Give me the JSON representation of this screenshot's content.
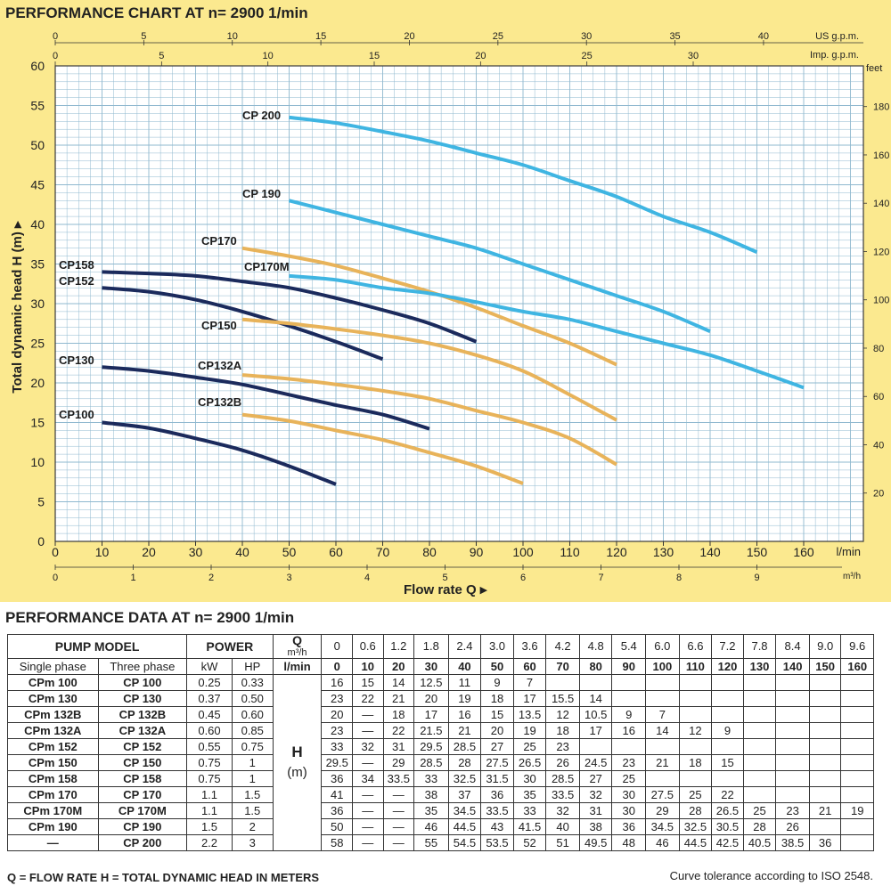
{
  "chart_title": "PERFORMANCE CHART AT n= 2900 1/min",
  "table_title": "PERFORMANCE DATA AT n= 2900 1/min",
  "colors": {
    "background": "#fbe98f",
    "grid": "#8fb8cf",
    "dark": "#1b2a5c",
    "orange": "#e8b35a",
    "blue": "#3fb5e2"
  },
  "chart_data": {
    "type": "line",
    "xlabel": "Flow rate Q",
    "ylabel": "Total dynamic head H (m)",
    "xlim": [
      0,
      170
    ],
    "ylim": [
      0,
      60
    ],
    "x_unit": "l/min",
    "y_ticks": [
      0,
      5,
      10,
      15,
      20,
      25,
      30,
      35,
      40,
      45,
      50,
      55,
      60
    ],
    "x_ticks": [
      0,
      10,
      20,
      30,
      40,
      50,
      60,
      70,
      80,
      90,
      100,
      110,
      120,
      130,
      140,
      150,
      160
    ],
    "grid": true,
    "secondary_axes": {
      "us_gpm": {
        "label": "US g.p.m.",
        "ticks": [
          0,
          5,
          10,
          15,
          20,
          25,
          30,
          35,
          40
        ]
      },
      "imp_gpm": {
        "label": "Imp. g.p.m.",
        "ticks": [
          0,
          5,
          10,
          15,
          20,
          25,
          30
        ]
      },
      "feet": {
        "label": "feet",
        "ticks": [
          20,
          40,
          60,
          80,
          100,
          120,
          140,
          160,
          180
        ]
      },
      "m3h": {
        "label": "m³/h",
        "ticks": [
          0,
          1,
          2,
          3,
          4,
          5,
          6,
          7,
          8,
          9
        ]
      }
    },
    "series": [
      {
        "name": "CP100",
        "color": "dark",
        "x": [
          10,
          20,
          30,
          40,
          50,
          60
        ],
        "y": [
          15,
          14.3,
          13,
          11.5,
          9.5,
          7.2
        ]
      },
      {
        "name": "CP130",
        "color": "dark",
        "x": [
          10,
          20,
          30,
          40,
          50,
          60,
          70,
          80
        ],
        "y": [
          22,
          21.5,
          20.7,
          19.8,
          18.5,
          17.2,
          16,
          14.2
        ]
      },
      {
        "name": "CP152",
        "color": "dark",
        "x": [
          10,
          20,
          30,
          40,
          50,
          60,
          70
        ],
        "y": [
          32,
          31.5,
          30.5,
          29,
          27.2,
          25.2,
          23
        ]
      },
      {
        "name": "CP158",
        "color": "dark",
        "x": [
          10,
          20,
          30,
          40,
          50,
          60,
          70,
          80,
          90
        ],
        "y": [
          34,
          33.8,
          33.5,
          32.8,
          32,
          30.7,
          29.2,
          27.5,
          25.2
        ]
      },
      {
        "name": "CP132A",
        "color": "orange",
        "x": [
          40,
          50,
          60,
          70,
          80,
          90,
          100,
          110,
          120
        ],
        "y": [
          21,
          20.5,
          19.8,
          19,
          18,
          16.5,
          15,
          13,
          9.7
        ]
      },
      {
        "name": "CP132B",
        "color": "orange",
        "x": [
          40,
          50,
          60,
          70,
          80,
          90,
          100
        ],
        "y": [
          16,
          15.2,
          14,
          12.8,
          11.2,
          9.5,
          7.3
        ]
      },
      {
        "name": "CP150",
        "color": "orange",
        "x": [
          40,
          50,
          60,
          70,
          80,
          90,
          100,
          110,
          120
        ],
        "y": [
          28,
          27.5,
          26.8,
          26,
          25,
          23.5,
          21.5,
          18.5,
          15.3
        ]
      },
      {
        "name": "CP170",
        "color": "orange",
        "x": [
          40,
          50,
          60,
          70,
          80,
          90,
          100,
          110,
          120
        ],
        "y": [
          37,
          36,
          34.8,
          33.2,
          31.5,
          29.5,
          27.2,
          25,
          22.3
        ]
      },
      {
        "name": "CP170M",
        "color": "blue",
        "x": [
          50,
          60,
          70,
          80,
          90,
          100,
          110,
          120,
          130,
          140,
          150,
          160
        ],
        "y": [
          33.5,
          33,
          32,
          31.3,
          30.2,
          29,
          28,
          26.5,
          25,
          23.5,
          21.5,
          19.4
        ]
      },
      {
        "name": "CP 190",
        "color": "blue",
        "x": [
          50,
          60,
          70,
          80,
          90,
          100,
          110,
          120,
          130,
          140
        ],
        "y": [
          43,
          41.5,
          40,
          38.5,
          37,
          35,
          33,
          31,
          29,
          26.5
        ]
      },
      {
        "name": "CP 200",
        "color": "blue",
        "x": [
          50,
          60,
          70,
          80,
          90,
          100,
          110,
          120,
          130,
          140,
          150
        ],
        "y": [
          53.5,
          52.8,
          51.7,
          50.5,
          49,
          47.5,
          45.5,
          43.5,
          41,
          39,
          36.5
        ]
      }
    ]
  },
  "table": {
    "header": {
      "pump_model": "PUMP MODEL",
      "single_phase": "Single phase",
      "three_phase": "Three phase",
      "power": "POWER",
      "kw": "kW",
      "hp": "HP",
      "q_label": "Q",
      "m3h": "m³/h",
      "lmin": "l/min",
      "h_label": "H",
      "h_unit": "(m)"
    },
    "q_m3h": [
      "0",
      "0.6",
      "1.2",
      "1.8",
      "2.4",
      "3.0",
      "3.6",
      "4.2",
      "4.8",
      "5.4",
      "6.0",
      "6.6",
      "7.2",
      "7.8",
      "8.4",
      "9.0",
      "9.6"
    ],
    "q_lmin": [
      "0",
      "10",
      "20",
      "30",
      "40",
      "50",
      "60",
      "70",
      "80",
      "90",
      "100",
      "110",
      "120",
      "130",
      "140",
      "150",
      "160"
    ],
    "rows": [
      {
        "single": "CPm 100",
        "three": "CP 100",
        "kw": "0.25",
        "hp": "0.33",
        "h": [
          "16",
          "15",
          "14",
          "12.5",
          "11",
          "9",
          "7",
          "",
          "",
          "",
          "",
          "",
          "",
          "",
          "",
          "",
          ""
        ]
      },
      {
        "single": "CPm 130",
        "three": "CP 130",
        "kw": "0.37",
        "hp": "0.50",
        "h": [
          "23",
          "22",
          "21",
          "20",
          "19",
          "18",
          "17",
          "15.5",
          "14",
          "",
          "",
          "",
          "",
          "",
          "",
          "",
          ""
        ]
      },
      {
        "single": "CPm 132B",
        "three": "CP 132B",
        "kw": "0.45",
        "hp": "0.60",
        "h": [
          "20",
          "—",
          "18",
          "17",
          "16",
          "15",
          "13.5",
          "12",
          "10.5",
          "9",
          "7",
          "",
          "",
          "",
          "",
          "",
          ""
        ]
      },
      {
        "single": "CPm 132A",
        "three": "CP 132A",
        "kw": "0.60",
        "hp": "0.85",
        "h": [
          "23",
          "—",
          "22",
          "21.5",
          "21",
          "20",
          "19",
          "18",
          "17",
          "16",
          "14",
          "12",
          "9",
          "",
          "",
          "",
          ""
        ]
      },
      {
        "single": "CPm 152",
        "three": "CP 152",
        "kw": "0.55",
        "hp": "0.75",
        "h": [
          "33",
          "32",
          "31",
          "29.5",
          "28.5",
          "27",
          "25",
          "23",
          "",
          "",
          "",
          "",
          "",
          "",
          "",
          "",
          ""
        ]
      },
      {
        "single": "CPm 150",
        "three": "CP 150",
        "kw": "0.75",
        "hp": "1",
        "h": [
          "29.5",
          "—",
          "29",
          "28.5",
          "28",
          "27.5",
          "26.5",
          "26",
          "24.5",
          "23",
          "21",
          "18",
          "15",
          "",
          "",
          "",
          ""
        ]
      },
      {
        "single": "CPm 158",
        "three": "CP 158",
        "kw": "0.75",
        "hp": "1",
        "h": [
          "36",
          "34",
          "33.5",
          "33",
          "32.5",
          "31.5",
          "30",
          "28.5",
          "27",
          "25",
          "",
          "",
          "",
          "",
          "",
          "",
          ""
        ]
      },
      {
        "single": "CPm 170",
        "three": "CP 170",
        "kw": "1.1",
        "hp": "1.5",
        "h": [
          "41",
          "—",
          "—",
          "38",
          "37",
          "36",
          "35",
          "33.5",
          "32",
          "30",
          "27.5",
          "25",
          "22",
          "",
          "",
          "",
          ""
        ]
      },
      {
        "single": "CPm 170M",
        "three": "CP 170M",
        "kw": "1.1",
        "hp": "1.5",
        "h": [
          "36",
          "—",
          "—",
          "35",
          "34.5",
          "33.5",
          "33",
          "32",
          "31",
          "30",
          "29",
          "28",
          "26.5",
          "25",
          "23",
          "21",
          "19"
        ]
      },
      {
        "single": "CPm 190",
        "three": "CP 190",
        "kw": "1.5",
        "hp": "2",
        "h": [
          "50",
          "—",
          "—",
          "46",
          "44.5",
          "43",
          "41.5",
          "40",
          "38",
          "36",
          "34.5",
          "32.5",
          "30.5",
          "28",
          "26",
          "",
          ""
        ]
      },
      {
        "single": "—",
        "three": "CP 200",
        "kw": "2.2",
        "hp": "3",
        "h": [
          "58",
          "—",
          "—",
          "55",
          "54.5",
          "53.5",
          "52",
          "51",
          "49.5",
          "48",
          "46",
          "44.5",
          "42.5",
          "40.5",
          "38.5",
          "36",
          ""
        ]
      }
    ]
  },
  "footnote": "Q = FLOW RATE H = TOTAL DYNAMIC HEAD IN METERS",
  "tolerance": "Curve tolerance according to ISO 2548."
}
